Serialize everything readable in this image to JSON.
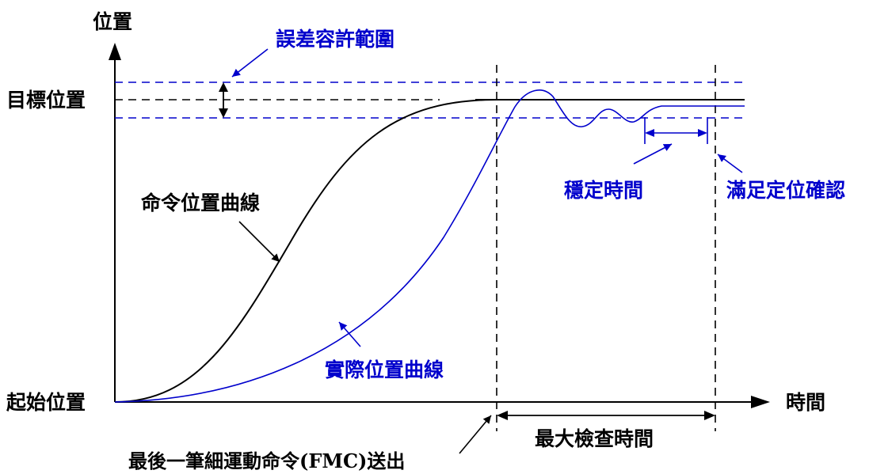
{
  "colors": {
    "ink": "#000000",
    "blue": "#0000cc"
  },
  "axes": {
    "y_label": "位置",
    "x_label": "時間",
    "target_position": "目標位置",
    "start_position": "起始位置"
  },
  "annotations": {
    "tolerance_range": "誤差容許範圍",
    "command_curve": "命令位置曲線",
    "actual_curve": "實際位置曲線",
    "settling_time": "穩定時間",
    "in_position_confirmed": "滿足定位確認",
    "max_check_time": "最大檢查時間",
    "last_fmc_sent": "最後一筆細運動命令(FMC)送出"
  }
}
